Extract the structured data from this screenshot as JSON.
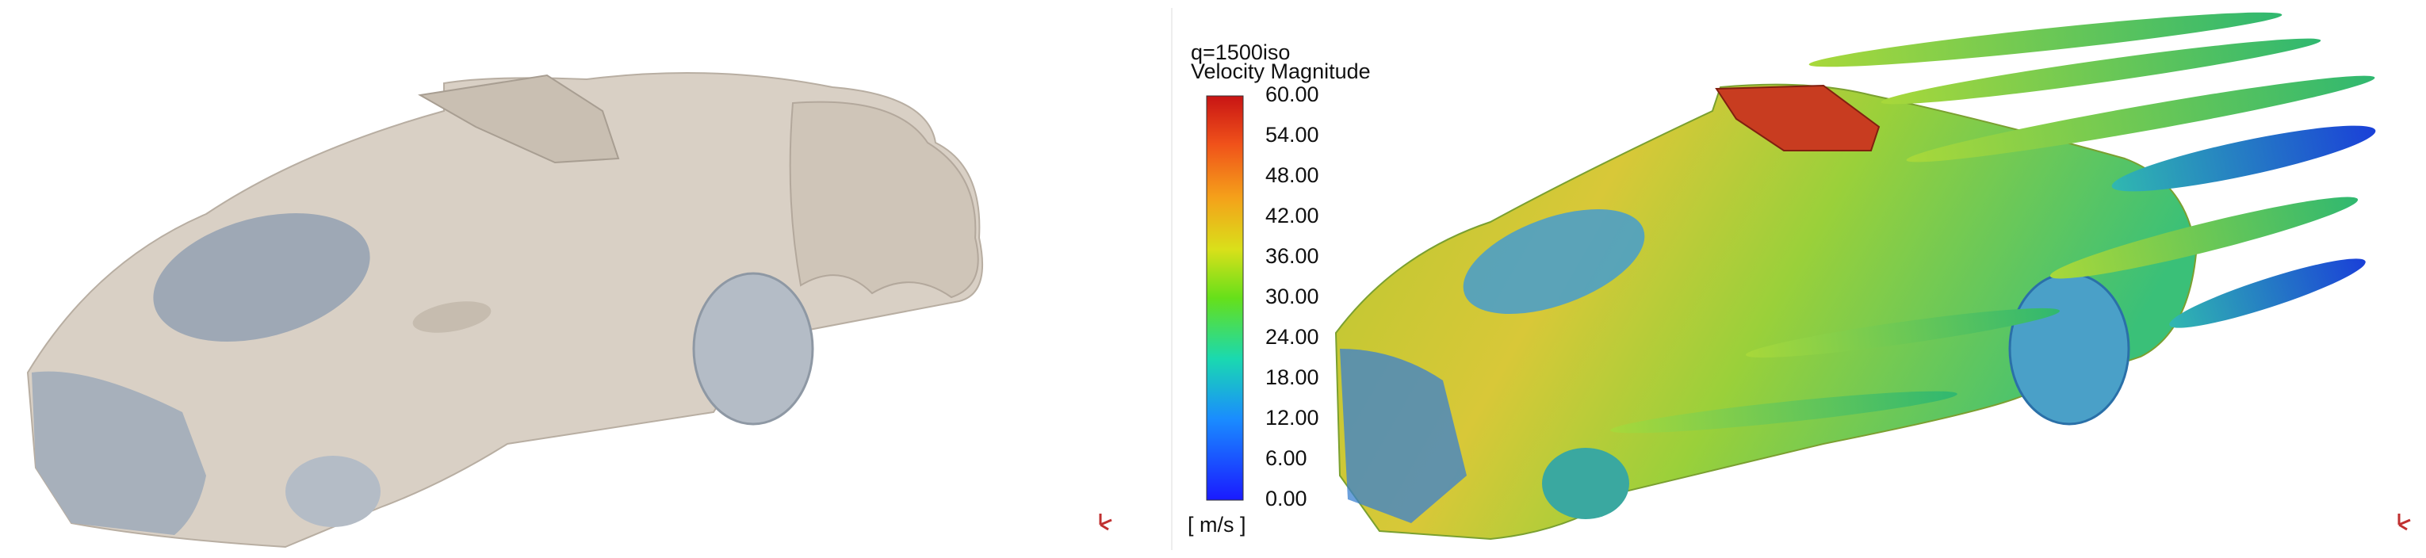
{
  "legend": {
    "title": "q=1500iso",
    "subtitle": "Velocity Magnitude",
    "ticks": [
      "60.00",
      "54.00",
      "48.00",
      "42.00",
      "36.00",
      "30.00",
      "24.00",
      "18.00",
      "12.00",
      "6.00",
      "0.00"
    ],
    "unit": "[ m/s ]"
  }
}
